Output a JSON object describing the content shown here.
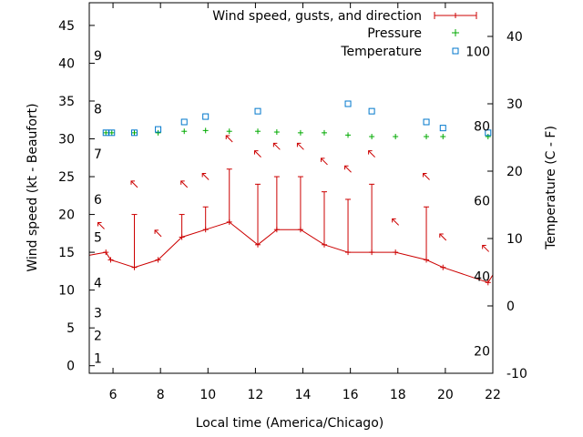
{
  "chart_data": {
    "type": "scatter",
    "xlabel": "Local time (America/Chicago)",
    "ylabel_left": "Wind speed (kt - Beaufort)",
    "ylabel_right": "Temperature (C - F)",
    "x_range": [
      5,
      22
    ],
    "x_ticks": [
      6,
      8,
      10,
      12,
      14,
      16,
      18,
      20,
      22
    ],
    "y_left_range": [
      -1,
      48
    ],
    "y_left_ticks": [
      0,
      5,
      10,
      15,
      20,
      25,
      30,
      35,
      40,
      45
    ],
    "y_right_range": [
      -10,
      45
    ],
    "y_right_ticks": [
      -10,
      0,
      10,
      20,
      30,
      40
    ],
    "beaufort_labels": [
      {
        "text": "1",
        "y": 1
      },
      {
        "text": "2",
        "y": 4
      },
      {
        "text": "3",
        "y": 7
      },
      {
        "text": "4",
        "y": 11
      },
      {
        "text": "5",
        "y": 17
      },
      {
        "text": "6",
        "y": 22
      },
      {
        "text": "7",
        "y": 28
      },
      {
        "text": "8",
        "y": 34
      },
      {
        "text": "9",
        "y": 41
      }
    ],
    "fahrenheit_labels": [
      {
        "text": "20",
        "t": -6.7
      },
      {
        "text": "40",
        "t": 4.4
      },
      {
        "text": "60",
        "t": 15.6
      },
      {
        "text": "80",
        "t": 26.7
      },
      {
        "text": "100",
        "t": 37.8
      }
    ],
    "legend": {
      "position": "top-right",
      "entries": [
        "Wind speed, gusts, and direction",
        "Pressure",
        "Temperature"
      ]
    },
    "colors": {
      "wind": "#cc0000",
      "pressure": "#00aa00",
      "temperature": "#0077cc"
    },
    "series": [
      {
        "name": "Wind speed, gusts, and direction",
        "points": [
          {
            "x": 5.0,
            "speed": 14.6,
            "gust": null
          },
          {
            "x": 5.7,
            "speed": 15,
            "gust": null
          },
          {
            "x": 5.9,
            "speed": 14,
            "gust": null
          },
          {
            "x": 6.9,
            "speed": 13,
            "gust": 20
          },
          {
            "x": 7.9,
            "speed": 14,
            "gust": null
          },
          {
            "x": 8.9,
            "speed": 17,
            "gust": 20
          },
          {
            "x": 9.9,
            "speed": 18,
            "gust": 21
          },
          {
            "x": 10.9,
            "speed": 19,
            "gust": 26
          },
          {
            "x": 12.1,
            "speed": 16,
            "gust": 24
          },
          {
            "x": 12.9,
            "speed": 18,
            "gust": 25
          },
          {
            "x": 13.9,
            "speed": 18,
            "gust": 25
          },
          {
            "x": 14.9,
            "speed": 16,
            "gust": 23
          },
          {
            "x": 15.9,
            "speed": 15,
            "gust": 22
          },
          {
            "x": 16.9,
            "speed": 15,
            "gust": 24
          },
          {
            "x": 17.9,
            "speed": 15,
            "gust": null
          },
          {
            "x": 19.2,
            "speed": 14,
            "gust": 21
          },
          {
            "x": 19.9,
            "speed": 13,
            "gust": null
          },
          {
            "x": 21.8,
            "speed": 11,
            "gust": null
          },
          {
            "x": 22.0,
            "speed": 12,
            "gust": null
          }
        ],
        "direction_arrows": [
          {
            "x": 5.5,
            "y": 18.5
          },
          {
            "x": 6.9,
            "y": 24
          },
          {
            "x": 7.9,
            "y": 17.5
          },
          {
            "x": 9.0,
            "y": 24
          },
          {
            "x": 9.9,
            "y": 25
          },
          {
            "x": 10.9,
            "y": 30
          },
          {
            "x": 12.1,
            "y": 28
          },
          {
            "x": 12.9,
            "y": 29
          },
          {
            "x": 13.9,
            "y": 29
          },
          {
            "x": 14.9,
            "y": 27
          },
          {
            "x": 15.9,
            "y": 26
          },
          {
            "x": 16.9,
            "y": 28
          },
          {
            "x": 17.9,
            "y": 19
          },
          {
            "x": 19.2,
            "y": 25
          },
          {
            "x": 19.9,
            "y": 17
          },
          {
            "x": 21.7,
            "y": 15.5
          }
        ]
      },
      {
        "name": "Pressure",
        "points": [
          {
            "x": 5.7,
            "y": 30.8
          },
          {
            "x": 5.95,
            "y": 30.8
          },
          {
            "x": 6.9,
            "y": 30.8
          },
          {
            "x": 7.9,
            "y": 30.8
          },
          {
            "x": 9.0,
            "y": 31
          },
          {
            "x": 9.9,
            "y": 31.1
          },
          {
            "x": 10.9,
            "y": 31
          },
          {
            "x": 12.1,
            "y": 31
          },
          {
            "x": 12.9,
            "y": 30.9
          },
          {
            "x": 13.9,
            "y": 30.8
          },
          {
            "x": 14.9,
            "y": 30.8
          },
          {
            "x": 15.9,
            "y": 30.5
          },
          {
            "x": 16.9,
            "y": 30.3
          },
          {
            "x": 17.9,
            "y": 30.3
          },
          {
            "x": 19.2,
            "y": 30.3
          },
          {
            "x": 19.9,
            "y": 30.3
          },
          {
            "x": 21.8,
            "y": 30.3
          }
        ]
      },
      {
        "name": "Temperature",
        "points": [
          {
            "x": 5.7,
            "t": 25.7
          },
          {
            "x": 5.95,
            "t": 25.7
          },
          {
            "x": 6.9,
            "t": 25.7
          },
          {
            "x": 7.9,
            "t": 26.2
          },
          {
            "x": 9.0,
            "t": 27.3
          },
          {
            "x": 9.9,
            "t": 28.1
          },
          {
            "x": 12.1,
            "t": 28.9
          },
          {
            "x": 15.9,
            "t": 30.0
          },
          {
            "x": 16.9,
            "t": 28.9
          },
          {
            "x": 19.2,
            "t": 27.3
          },
          {
            "x": 19.9,
            "t": 26.4
          },
          {
            "x": 21.8,
            "t": 25.7
          }
        ]
      }
    ]
  }
}
